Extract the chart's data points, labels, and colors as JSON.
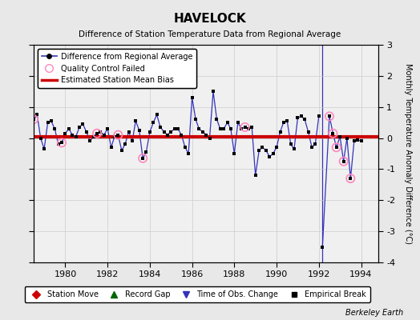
{
  "title": "HAVELOCK",
  "subtitle": "Difference of Station Temperature Data from Regional Average",
  "ylabel": "Monthly Temperature Anomaly Difference (°C)",
  "xlabel_bottom": "Berkeley Earth",
  "xlim": [
    1978.5,
    1994.8
  ],
  "ylim": [
    -4,
    3
  ],
  "yticks": [
    -4,
    -3,
    -2,
    -1,
    0,
    1,
    2,
    3
  ],
  "xticks": [
    1980,
    1982,
    1984,
    1986,
    1988,
    1990,
    1992,
    1994
  ],
  "bias": 0.05,
  "bg_color": "#e8e8e8",
  "plot_bg_color": "#f0f0f0",
  "time_series": [
    [
      1978.5,
      0.6
    ],
    [
      1978.67,
      0.75
    ],
    [
      1978.83,
      0.0
    ],
    [
      1979.0,
      -0.35
    ],
    [
      1979.17,
      0.5
    ],
    [
      1979.33,
      0.55
    ],
    [
      1979.5,
      0.3
    ],
    [
      1979.67,
      -0.2
    ],
    [
      1979.83,
      -0.15
    ],
    [
      1980.0,
      0.15
    ],
    [
      1980.17,
      0.3
    ],
    [
      1980.33,
      0.1
    ],
    [
      1980.5,
      0.05
    ],
    [
      1980.67,
      0.35
    ],
    [
      1980.83,
      0.45
    ],
    [
      1981.0,
      0.2
    ],
    [
      1981.17,
      -0.1
    ],
    [
      1981.33,
      0.05
    ],
    [
      1981.5,
      0.15
    ],
    [
      1981.67,
      0.2
    ],
    [
      1981.83,
      0.1
    ],
    [
      1982.0,
      0.3
    ],
    [
      1982.17,
      -0.3
    ],
    [
      1982.33,
      0.05
    ],
    [
      1982.5,
      0.1
    ],
    [
      1982.67,
      -0.4
    ],
    [
      1982.83,
      -0.2
    ],
    [
      1983.0,
      0.2
    ],
    [
      1983.17,
      -0.1
    ],
    [
      1983.33,
      0.55
    ],
    [
      1983.5,
      0.25
    ],
    [
      1983.67,
      -0.65
    ],
    [
      1983.83,
      -0.45
    ],
    [
      1984.0,
      0.2
    ],
    [
      1984.17,
      0.5
    ],
    [
      1984.33,
      0.75
    ],
    [
      1984.5,
      0.35
    ],
    [
      1984.67,
      0.2
    ],
    [
      1984.83,
      0.1
    ],
    [
      1985.0,
      0.2
    ],
    [
      1985.17,
      0.3
    ],
    [
      1985.33,
      0.3
    ],
    [
      1985.5,
      0.1
    ],
    [
      1985.67,
      -0.3
    ],
    [
      1985.83,
      -0.5
    ],
    [
      1986.0,
      1.3
    ],
    [
      1986.17,
      0.6
    ],
    [
      1986.33,
      0.3
    ],
    [
      1986.5,
      0.2
    ],
    [
      1986.67,
      0.1
    ],
    [
      1986.83,
      0.0
    ],
    [
      1987.0,
      1.5
    ],
    [
      1987.17,
      0.6
    ],
    [
      1987.33,
      0.3
    ],
    [
      1987.5,
      0.3
    ],
    [
      1987.67,
      0.5
    ],
    [
      1987.83,
      0.3
    ],
    [
      1988.0,
      -0.5
    ],
    [
      1988.17,
      0.5
    ],
    [
      1988.33,
      0.3
    ],
    [
      1988.5,
      0.35
    ],
    [
      1988.67,
      0.3
    ],
    [
      1988.83,
      0.35
    ],
    [
      1989.0,
      -1.2
    ],
    [
      1989.17,
      -0.4
    ],
    [
      1989.33,
      -0.3
    ],
    [
      1989.5,
      -0.4
    ],
    [
      1989.67,
      -0.6
    ],
    [
      1989.83,
      -0.5
    ],
    [
      1990.0,
      -0.3
    ],
    [
      1990.17,
      0.2
    ],
    [
      1990.33,
      0.5
    ],
    [
      1990.5,
      0.55
    ],
    [
      1990.67,
      -0.2
    ],
    [
      1990.83,
      -0.35
    ],
    [
      1991.0,
      0.65
    ],
    [
      1991.17,
      0.7
    ],
    [
      1991.33,
      0.6
    ],
    [
      1991.5,
      0.2
    ],
    [
      1991.67,
      -0.3
    ],
    [
      1991.83,
      -0.2
    ],
    [
      1992.0,
      0.7
    ],
    [
      1992.17,
      -3.5
    ],
    [
      1992.5,
      0.7
    ],
    [
      1992.67,
      0.15
    ],
    [
      1992.83,
      -0.3
    ],
    [
      1993.0,
      0.05
    ],
    [
      1993.17,
      -0.75
    ],
    [
      1993.33,
      0.0
    ],
    [
      1993.5,
      -1.3
    ],
    [
      1993.67,
      -0.1
    ],
    [
      1993.83,
      -0.05
    ],
    [
      1994.0,
      -0.1
    ]
  ],
  "qc_failed_times": [
    1978.5,
    1979.83,
    1981.5,
    1982.5,
    1983.67,
    1988.5,
    1992.5,
    1992.67,
    1992.83,
    1993.17,
    1993.5
  ],
  "break_x": 1992.15,
  "line_color": "#3333bb",
  "dot_color": "#000000",
  "qc_color": "#ff88bb",
  "bias_color": "#cc0000",
  "grid_color": "#cccccc"
}
